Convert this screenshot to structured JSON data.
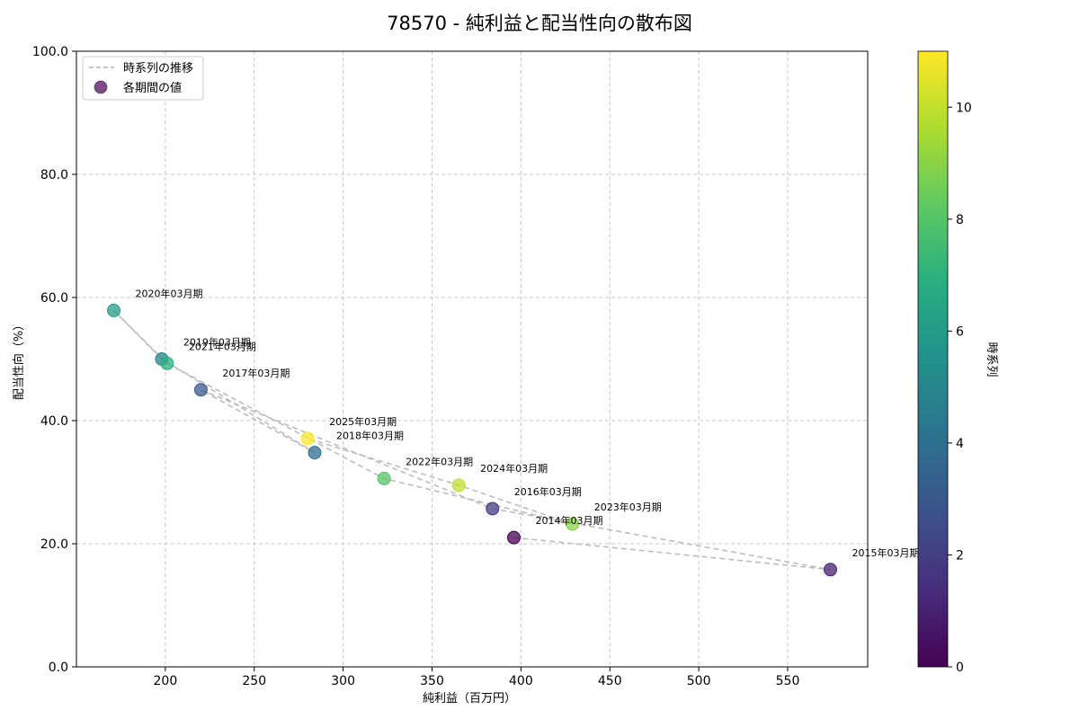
{
  "chart_data": {
    "type": "scatter",
    "title": "78570 - 純利益と配当性向の散布図",
    "xlabel": "純利益（百万円）",
    "ylabel": "配当性向（%）",
    "xlim": [
      150,
      595
    ],
    "ylim": [
      0,
      100
    ],
    "xticks": [
      "200",
      "250",
      "300",
      "350",
      "400",
      "450",
      "500",
      "550"
    ],
    "yticks": [
      "0.0",
      "20.0",
      "40.0",
      "60.0",
      "80.0",
      "100.0"
    ],
    "grid": true,
    "legend_position": "top-left",
    "legend": [
      "時系列の推移",
      "各期間の値"
    ],
    "colorbar": {
      "label": "時系列",
      "range": [
        0,
        11
      ],
      "ticks": [
        "0",
        "2",
        "4",
        "6",
        "8",
        "10"
      ],
      "colormap": "viridis"
    },
    "points": [
      {
        "label": "2014年03月期",
        "x": 396,
        "y": 21.0,
        "t": 0
      },
      {
        "label": "2015年03月期",
        "x": 574,
        "y": 15.8,
        "t": 1
      },
      {
        "label": "2016年03月期",
        "x": 384,
        "y": 25.7,
        "t": 2
      },
      {
        "label": "2017年03月期",
        "x": 220,
        "y": 45.0,
        "t": 3
      },
      {
        "label": "2018年03月期",
        "x": 284,
        "y": 34.8,
        "t": 4
      },
      {
        "label": "2019年03月期",
        "x": 198,
        "y": 50.0,
        "t": 5
      },
      {
        "label": "2020年03月期",
        "x": 171,
        "y": 57.9,
        "t": 6
      },
      {
        "label": "2021年03月期",
        "x": 201,
        "y": 49.3,
        "t": 7
      },
      {
        "label": "2022年03月期",
        "x": 323,
        "y": 30.6,
        "t": 8
      },
      {
        "label": "2023年03月期",
        "x": 429,
        "y": 23.2,
        "t": 9
      },
      {
        "label": "2024年03月期",
        "x": 365,
        "y": 29.5,
        "t": 10
      },
      {
        "label": "2025年03月期",
        "x": 280,
        "y": 37.1,
        "t": 11
      }
    ],
    "colors": {
      "line": "#bdbdbd",
      "grid": "#c8c8c8"
    }
  }
}
